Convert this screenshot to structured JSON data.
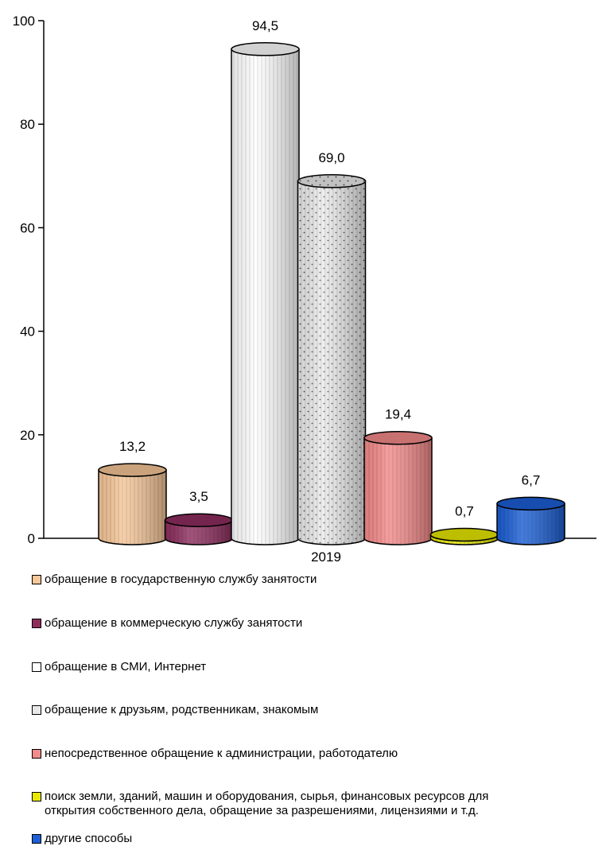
{
  "chart_data": {
    "type": "bar",
    "categories": [
      "2019"
    ],
    "series": [
      {
        "name": "обращение в государственную службу занятости",
        "value": 13.2,
        "label": "13,2",
        "color": "#F7C799"
      },
      {
        "name": "обращение в коммерческую службу занятости",
        "value": 3.5,
        "label": "3,5",
        "color": "#8E2E5E"
      },
      {
        "name": "обращение в СМИ, Интернет",
        "value": 94.5,
        "label": "94,5",
        "color": "#FFFFFF"
      },
      {
        "name": "обращение к друзьям, родственникам, знакомым",
        "value": 69.0,
        "label": "69,0",
        "color": "#E8E8E8"
      },
      {
        "name": "непосредственное обращение к администрации, работодателю",
        "value": 19.4,
        "label": "19,4",
        "color": "#F58A8A"
      },
      {
        "name": "поиск земли, зданий, машин и оборудования, сырья, финансовых ресурсов для\nоткрытия собственного дела, обращение за разрешениями, лицензиями и т.д.",
        "value": 0.7,
        "label": "0,7",
        "color": "#E8E800"
      },
      {
        "name": "другие способы",
        "value": 6.7,
        "label": "6,7",
        "color": "#1C5FD6"
      }
    ],
    "y_ticks": [
      "0",
      "20",
      "40",
      "60",
      "80",
      "100"
    ],
    "ylim": [
      0,
      100
    ],
    "legend_position": "bottom",
    "grid": false
  }
}
